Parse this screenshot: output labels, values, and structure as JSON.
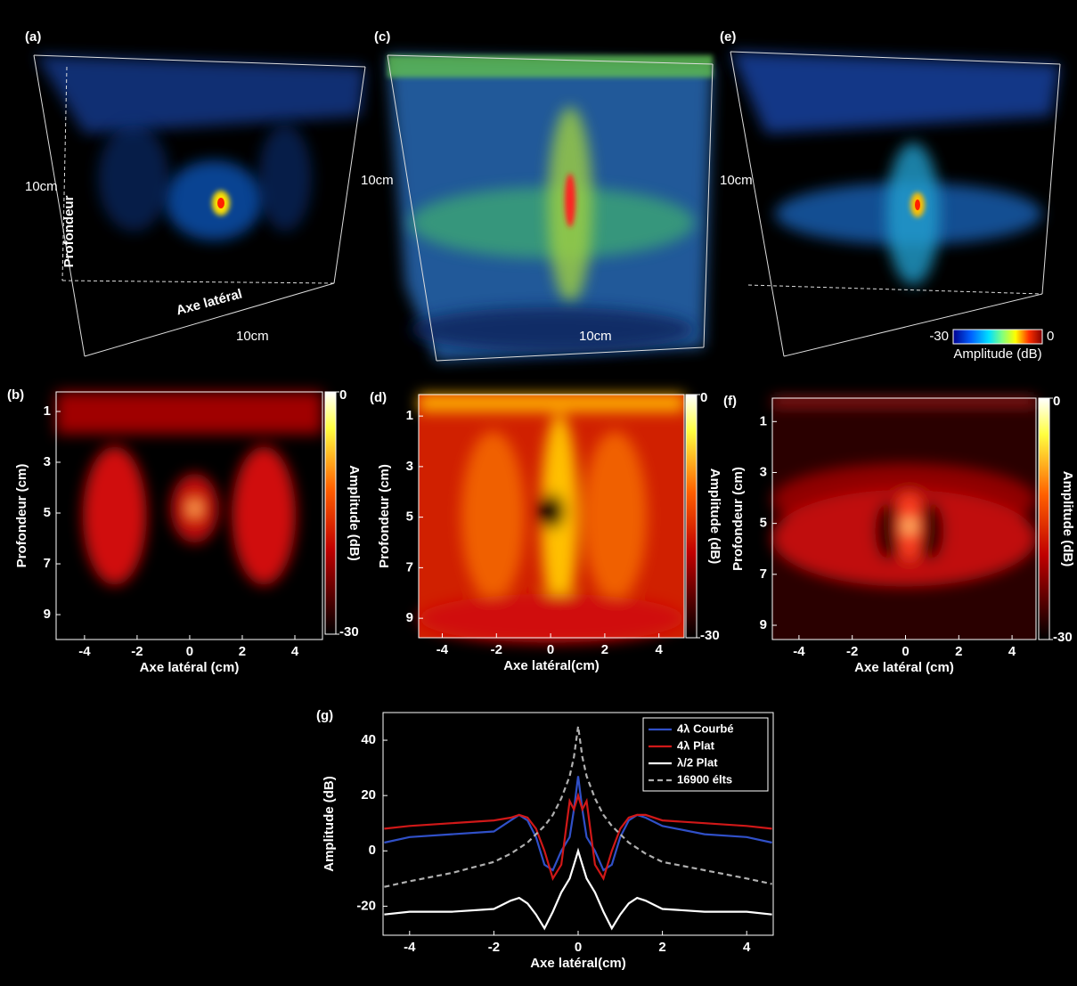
{
  "panels": [
    {
      "label": "(a)",
      "depth": "10cm",
      "depth_axis": "Profondeur",
      "lateral_axis": "Axe latéral",
      "lateral": "10cm"
    },
    {
      "label": "(c)",
      "depth": "10cm",
      "lateral": "10cm"
    },
    {
      "label": "(e)",
      "depth": "10cm",
      "colorbar": {
        "min": -30,
        "max": 0,
        "title": "Amplitude (dB)"
      }
    }
  ],
  "heatmaps": [
    {
      "label": "(b)",
      "xlabel": "Axe latéral (cm)",
      "ylabel": "Profondeur (cm)",
      "xlim": [
        -5.08,
        5.05
      ],
      "ylim": [
        9.98,
        0.23
      ],
      "xticks": [
        -4,
        -2,
        0,
        2,
        4
      ],
      "yticks": [
        1,
        3,
        5,
        7,
        9
      ],
      "colorbar_ticks": [
        0,
        -30
      ],
      "colorbar_lim": [
        -30,
        0
      ],
      "colorbar_label": "Amplitude (dB)"
    },
    {
      "label": "(d)",
      "xlabel": "Axe latéral(cm)",
      "ylabel": "Profondeur (cm)",
      "xlim": [
        -4.87,
        4.93
      ],
      "ylim": [
        9.77,
        0.15
      ],
      "xticks": [
        -4,
        -2,
        0,
        2,
        4
      ],
      "yticks": [
        1,
        3,
        5,
        7,
        9
      ],
      "colorbar_ticks": [
        0,
        -30
      ],
      "colorbar_lim": [
        -30,
        0
      ],
      "colorbar_label": "Amplitude (dB)"
    },
    {
      "label": "(f)",
      "xlabel": "Axe latéral (cm)",
      "ylabel": "Profondeur (cm)",
      "xlim": [
        -5.0,
        4.9
      ],
      "ylim": [
        9.56,
        0.08
      ],
      "xticks": [
        -4,
        -2,
        0,
        2,
        4
      ],
      "yticks": [
        1,
        3,
        5,
        7,
        9
      ],
      "colorbar_ticks": [
        0,
        -30
      ],
      "colorbar_lim": [
        -30,
        0
      ],
      "colorbar_label": "Amplitude (dB)"
    }
  ],
  "chart_data": {
    "type": "line",
    "label": "(g)",
    "xlabel": "Axe latéral(cm)",
    "ylabel": "Amplitude (dB)",
    "xlim": [
      -4.63,
      4.63
    ],
    "ylim": [
      -30.5,
      50
    ],
    "xticks": [
      -4,
      -2,
      0,
      2,
      4
    ],
    "yticks": [
      -20,
      0,
      20,
      40
    ],
    "legend": "upper right",
    "x": [
      -4.6,
      -4,
      -3,
      -2,
      -1.6,
      -1.4,
      -1.2,
      -1,
      -0.8,
      -0.6,
      -0.4,
      -0.2,
      -0.1,
      0,
      0.1,
      0.2,
      0.4,
      0.6,
      0.8,
      1,
      1.2,
      1.4,
      1.6,
      2,
      3,
      4,
      4.6
    ],
    "series": [
      {
        "name": "4λ  Courbé",
        "color": "#3050c8",
        "dash": false,
        "values": [
          3,
          5,
          6,
          7,
          11,
          13,
          11,
          5,
          -5,
          -7,
          0,
          5,
          15,
          27,
          15,
          5,
          0,
          -7,
          -5,
          5,
          11,
          13,
          12,
          9,
          6,
          5,
          3
        ]
      },
      {
        "name": "4λ  Plat",
        "color": "#d01818",
        "dash": false,
        "values": [
          8,
          9,
          10,
          11,
          12,
          13,
          12,
          8,
          0,
          -10,
          -5,
          18,
          15,
          20,
          15,
          18,
          -5,
          -10,
          0,
          8,
          12,
          13,
          13,
          11,
          10,
          9,
          8
        ]
      },
      {
        "name": "λ/2 Plat",
        "color": "#ffffff",
        "dash": false,
        "values": [
          -23,
          -22,
          -22,
          -21,
          -18,
          -17,
          -19,
          -23,
          -28,
          -22,
          -15,
          -10,
          -5,
          0,
          -5,
          -10,
          -15,
          -22,
          -28,
          -23,
          -19,
          -17,
          -18,
          -21,
          -22,
          -22,
          -23
        ]
      },
      {
        "name": "16900 élts",
        "color": "#b0b0b0",
        "dash": true,
        "values": [
          -13,
          -11,
          -8,
          -4,
          -1,
          1,
          3,
          6,
          9,
          13,
          19,
          27,
          34,
          45,
          34,
          27,
          19,
          13,
          9,
          6,
          3,
          1,
          -1,
          -4,
          -7,
          -10,
          -12
        ]
      }
    ]
  }
}
